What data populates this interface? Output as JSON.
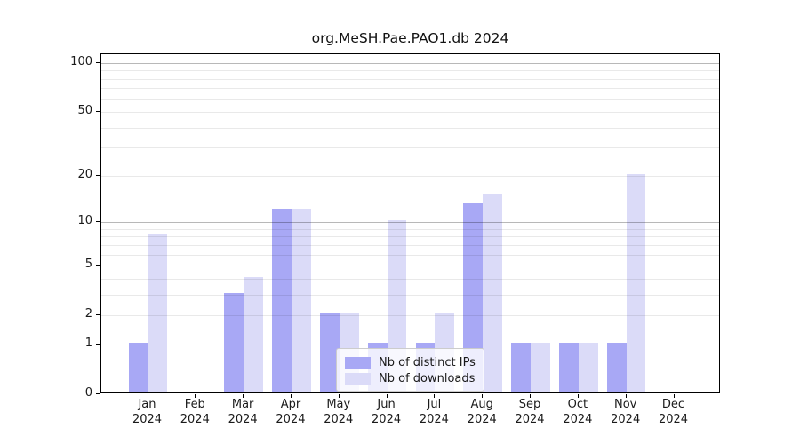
{
  "chart_data": {
    "type": "bar",
    "title": "org.MeSH.Pae.PAO1.db 2024",
    "categories": [
      "Jan",
      "Feb",
      "Mar",
      "Apr",
      "May",
      "Jun",
      "Jul",
      "Aug",
      "Sep",
      "Oct",
      "Nov",
      "Dec"
    ],
    "category_year_sublabel": "2024",
    "series": [
      {
        "name": "Nb of distinct IPs",
        "color": "#a8a8f5",
        "values": [
          1,
          0,
          3,
          12,
          2,
          1,
          1,
          13,
          1,
          1,
          1,
          0
        ]
      },
      {
        "name": "Nb of downloads",
        "color": "#dbdbf8",
        "values": [
          8,
          0,
          4,
          12,
          2,
          10,
          2,
          15,
          1,
          1,
          20,
          0
        ]
      }
    ],
    "yscale": "log1p",
    "ylim": [
      0,
      113
    ],
    "y_ticks": [
      0,
      1,
      2,
      5,
      10,
      20,
      50,
      100
    ],
    "grid": {
      "on": true,
      "major": [
        1,
        10,
        100
      ],
      "minor": [
        2,
        3,
        4,
        5,
        6,
        7,
        8,
        9,
        20,
        30,
        40,
        50,
        60,
        70,
        80,
        90
      ]
    },
    "legend": {
      "position": "lower center"
    },
    "colors": {
      "bar_ips": "#a8a8f5",
      "bar_downloads": "#dbdbf8",
      "spine": "#000000"
    }
  }
}
